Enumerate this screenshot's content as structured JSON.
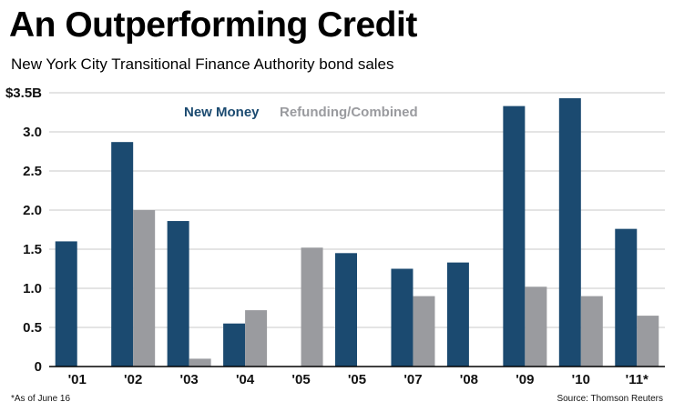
{
  "chart_data": {
    "type": "bar",
    "title": "An Outperforming Credit",
    "subtitle": "New York City Transitional Finance Authority bond sales",
    "xlabel": "",
    "ylabel": "",
    "ylim": [
      0,
      3.5
    ],
    "y_ticks": [
      "0",
      "0.5",
      "1.0",
      "1.5",
      "2.0",
      "2.5",
      "3.0",
      "$3.5B"
    ],
    "y_tick_values": [
      0,
      0.5,
      1.0,
      1.5,
      2.0,
      2.5,
      3.0,
      3.5
    ],
    "grid": true,
    "legend_position": "top-center",
    "categories": [
      "'01",
      "'02",
      "'03",
      "'04",
      "'05",
      "'05",
      "'07",
      "'08",
      "'09",
      "'10",
      "'11*"
    ],
    "series": [
      {
        "name": "New Money",
        "color": "#1b4a70",
        "values": [
          1.6,
          2.87,
          1.86,
          0.55,
          null,
          1.45,
          1.25,
          1.33,
          3.33,
          3.43,
          1.76
        ]
      },
      {
        "name": "Refunding/Combined",
        "color": "#9a9b9f",
        "values": [
          null,
          2.0,
          0.1,
          0.72,
          1.52,
          null,
          0.9,
          null,
          1.02,
          0.9,
          0.65
        ]
      }
    ]
  },
  "footnote": "*As of June 16",
  "source": "Source: Thomson Reuters"
}
